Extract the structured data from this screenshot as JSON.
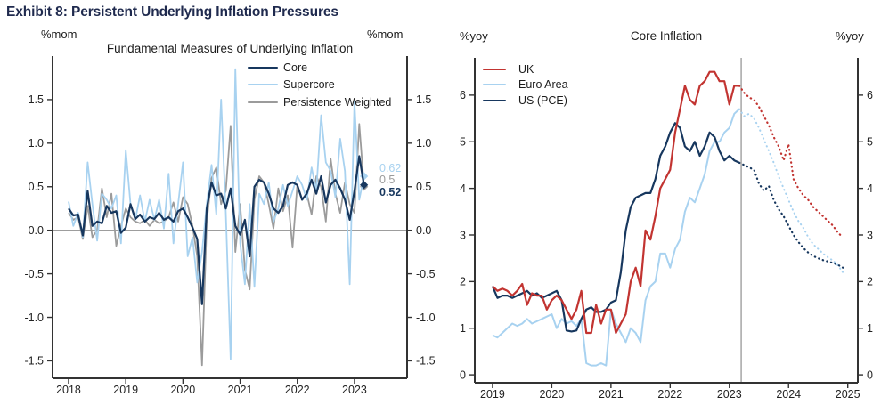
{
  "page_title": "Exhibit 8: Persistent Underlying Inflation Pressures",
  "colors": {
    "navy": "#17375e",
    "light_blue": "#a8d2f0",
    "gray": "#9b9b9b",
    "red": "#c23431",
    "title_navy": "#1f2a4e",
    "axis": "#333333",
    "guide_gray": "#8f8f8f"
  },
  "chart_data": [
    {
      "type": "line",
      "title": "Fundamental Measures of Underlying Inflation",
      "unit_left": "%mom",
      "unit_right": "%mom",
      "x_start": 2018.0,
      "x_step": 0.0833333,
      "xlim": [
        2017.72,
        2023.92
      ],
      "ylim": [
        -1.7,
        2.0
      ],
      "xticks": [
        2018,
        2019,
        2020,
        2021,
        2022,
        2023
      ],
      "xtick_labels": [
        "2018",
        "2019",
        "2020",
        "2021",
        "2022",
        "2023"
      ],
      "yticks": [
        1.5,
        1.0,
        0.5,
        0.0,
        -0.5,
        -1.0,
        -1.5
      ],
      "ytick_labels": [
        "1.5",
        "1.0",
        "0.5",
        "0.0",
        "-0.5",
        "-1.0",
        "-1.5"
      ],
      "zero_line": true,
      "grid": false,
      "legend_position": "top-right-inside",
      "series": [
        {
          "name": "Core",
          "color": "navy",
          "width": 2.2,
          "end_label": "0.52",
          "end_marker": true,
          "values": [
            0.25,
            0.17,
            0.18,
            -0.06,
            0.45,
            0.05,
            0.1,
            0.08,
            0.28,
            0.2,
            0.22,
            -0.03,
            0.03,
            0.3,
            0.13,
            0.18,
            0.1,
            0.15,
            0.13,
            0.2,
            0.12,
            0.15,
            0.1,
            0.22,
            0.25,
            0.15,
            0.03,
            -0.1,
            -0.85,
            0.25,
            0.55,
            0.4,
            0.42,
            0.25,
            0.48,
            0.05,
            -0.05,
            0.12,
            -0.3,
            0.5,
            0.58,
            0.55,
            0.42,
            0.25,
            0.2,
            0.28,
            0.52,
            0.55,
            0.52,
            0.35,
            0.42,
            0.58,
            0.42,
            0.62,
            0.32,
            0.52,
            0.58,
            0.48,
            0.35,
            0.12,
            0.45,
            0.85,
            0.52
          ]
        },
        {
          "name": "Supercore",
          "color": "light_blue",
          "width": 1.8,
          "end_label": "0.62",
          "end_marker": true,
          "values": [
            0.33,
            0.05,
            0.2,
            -0.08,
            0.78,
            0.3,
            -0.12,
            0.42,
            0.35,
            0.25,
            0.4,
            -0.15,
            0.92,
            0.3,
            0.12,
            0.4,
            0.1,
            0.35,
            0.12,
            0.35,
            0.02,
            0.65,
            -0.15,
            0.3,
            0.78,
            -0.3,
            -0.08,
            -0.6,
            -0.25,
            0.3,
            0.75,
            0.18,
            1.5,
            0.2,
            -1.48,
            1.85,
            -0.15,
            -0.62,
            0.3,
            -0.65,
            0.42,
            0.3,
            0.55,
            0.1,
            0.25,
            0.52,
            0.28,
            0.45,
            0.62,
            0.52,
            0.35,
            0.72,
            0.45,
            1.32,
            0.78,
            0.68,
            0.38,
            1.05,
            0.68,
            -0.62,
            1.48,
            0.35,
            0.62
          ]
        },
        {
          "name": "Persistence Weighted",
          "color": "gray",
          "width": 1.8,
          "end_label": "0.5",
          "end_marker": true,
          "values": [
            0.2,
            0.12,
            0.15,
            -0.1,
            0.28,
            -0.08,
            0.0,
            0.48,
            0.15,
            0.42,
            -0.18,
            0.05,
            0.25,
            0.15,
            0.1,
            0.08,
            0.12,
            0.05,
            0.12,
            0.08,
            0.1,
            0.15,
            0.32,
            0.1,
            0.38,
            0.3,
            0.05,
            -0.3,
            -1.55,
            0.1,
            0.6,
            0.72,
            0.3,
            0.45,
            1.2,
            -0.25,
            0.3,
            -0.45,
            -0.68,
            0.35,
            0.62,
            0.55,
            0.3,
            0.02,
            0.48,
            0.22,
            0.4,
            -0.2,
            0.52,
            0.35,
            0.42,
            0.18,
            0.62,
            0.5,
            0.1,
            0.82,
            0.42,
            0.2,
            0.55,
            0.3,
            0.2,
            1.22,
            0.5
          ]
        }
      ]
    },
    {
      "type": "line",
      "title": "Core Inflation",
      "unit_left": "%yoy",
      "unit_right": "%yoy",
      "x_start": 2019.0,
      "x_step": 0.0833333,
      "xlim": [
        2018.7,
        2025.17
      ],
      "ylim": [
        -0.17,
        6.8
      ],
      "xticks": [
        2019,
        2020,
        2021,
        2022,
        2023,
        2024,
        2025
      ],
      "xtick_labels": [
        "2019",
        "2020",
        "2021",
        "2022",
        "2023",
        "2024",
        "2025"
      ],
      "yticks": [
        0,
        1,
        2,
        3,
        4,
        5,
        6
      ],
      "ytick_labels": [
        "0",
        "1",
        "2",
        "3",
        "4",
        "5",
        "6"
      ],
      "zero_line": false,
      "grid": false,
      "forecast_divider_x": 2023.2,
      "legend_position": "top-left-inside",
      "series": [
        {
          "name": "UK",
          "color": "red",
          "width": 2.2,
          "values": [
            1.9,
            1.8,
            1.85,
            1.8,
            1.7,
            1.8,
            1.95,
            1.5,
            1.75,
            1.7,
            1.7,
            1.4,
            1.6,
            1.7,
            1.6,
            1.4,
            1.2,
            1.4,
            1.8,
            0.9,
            0.9,
            1.5,
            1.1,
            1.4,
            1.4,
            0.9,
            1.1,
            1.3,
            2.0,
            2.3,
            1.9,
            3.1,
            2.9,
            3.4,
            4.0,
            4.2,
            4.4,
            5.2,
            5.7,
            6.2,
            5.9,
            5.8,
            6.2,
            6.3,
            6.5,
            6.5,
            6.3,
            6.3,
            5.8,
            6.2,
            6.2
          ],
          "forecast": [
            6.05,
            5.95,
            5.9,
            5.75,
            5.55,
            5.35,
            5.1,
            4.9,
            4.6,
            4.95,
            4.2,
            4.0,
            3.85,
            3.75,
            3.6,
            3.5,
            3.4,
            3.3,
            3.2,
            3.05,
            2.95
          ]
        },
        {
          "name": "Euro Area",
          "color": "light_blue",
          "width": 2.0,
          "values": [
            0.85,
            0.8,
            0.9,
            1.0,
            1.1,
            1.05,
            1.1,
            1.2,
            1.1,
            1.15,
            1.2,
            1.25,
            1.3,
            1.0,
            1.2,
            1.1,
            1.15,
            1.05,
            1.2,
            0.25,
            0.2,
            0.2,
            0.25,
            0.2,
            1.4,
            1.1,
            0.9,
            0.7,
            1.0,
            0.9,
            0.7,
            1.6,
            1.9,
            2.0,
            2.6,
            2.6,
            2.3,
            2.7,
            2.9,
            3.5,
            3.8,
            3.7,
            4.0,
            4.3,
            4.8,
            5.0,
            5.0,
            5.2,
            5.3,
            5.6,
            5.7
          ],
          "forecast": [
            5.55,
            5.6,
            5.5,
            5.3,
            5.05,
            4.8,
            4.55,
            4.25,
            4.0,
            3.75,
            3.5,
            3.3,
            3.15,
            2.95,
            2.8,
            2.7,
            2.6,
            2.52,
            2.45,
            2.35,
            2.2
          ]
        },
        {
          "name": "US (PCE)",
          "color": "navy",
          "width": 2.2,
          "values": [
            1.9,
            1.65,
            1.7,
            1.7,
            1.65,
            1.7,
            1.75,
            1.8,
            1.7,
            1.75,
            1.65,
            1.7,
            1.75,
            1.8,
            1.6,
            0.95,
            0.93,
            0.95,
            1.2,
            1.4,
            1.45,
            1.35,
            1.35,
            1.4,
            1.55,
            1.6,
            2.2,
            3.1,
            3.6,
            3.8,
            3.85,
            3.9,
            3.9,
            4.2,
            4.7,
            4.9,
            5.2,
            5.4,
            5.3,
            4.9,
            4.8,
            5.0,
            4.7,
            4.9,
            5.2,
            5.1,
            4.8,
            4.6,
            4.7,
            4.6,
            4.55
          ],
          "forecast": [
            4.5,
            4.45,
            4.4,
            4.1,
            3.95,
            4.05,
            3.75,
            3.55,
            3.4,
            3.2,
            3.0,
            2.85,
            2.72,
            2.62,
            2.55,
            2.5,
            2.46,
            2.43,
            2.4,
            2.36,
            2.3
          ]
        }
      ]
    }
  ]
}
